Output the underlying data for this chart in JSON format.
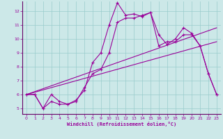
{
  "xlabel": "Windchill (Refroidissement éolien,°C)",
  "background_color": "#cce8e8",
  "grid_color": "#99cccc",
  "line_color": "#990099",
  "spine_color": "#660066",
  "tick_color": "#990099",
  "x_ticks": [
    0,
    1,
    2,
    3,
    4,
    5,
    6,
    7,
    8,
    9,
    10,
    11,
    12,
    13,
    14,
    15,
    16,
    17,
    18,
    19,
    20,
    21,
    22,
    23
  ],
  "y_ticks": [
    5,
    6,
    7,
    8,
    9,
    10,
    11,
    12
  ],
  "ylim": [
    4.6,
    12.7
  ],
  "xlim": [
    -0.5,
    23.5
  ],
  "series1_x": [
    0,
    1,
    2,
    3,
    4,
    5,
    6,
    7,
    8,
    9,
    10,
    11,
    12,
    13,
    14,
    15,
    16,
    17,
    18,
    19,
    20,
    21,
    22,
    23
  ],
  "series1_y": [
    6.0,
    6.0,
    5.0,
    6.0,
    5.5,
    5.3,
    5.6,
    6.3,
    8.3,
    9.0,
    11.0,
    12.6,
    11.7,
    11.8,
    11.6,
    11.9,
    9.5,
    9.8,
    9.8,
    10.3,
    10.3,
    9.5,
    7.5,
    6.0
  ],
  "series2_x": [
    0,
    1,
    2,
    3,
    4,
    5,
    6,
    7,
    8,
    9,
    10,
    11,
    12,
    13,
    14,
    15,
    16,
    17,
    18,
    19,
    20,
    21,
    22,
    23
  ],
  "series2_y": [
    6.0,
    6.0,
    5.0,
    5.5,
    5.3,
    5.3,
    5.5,
    6.5,
    7.5,
    7.8,
    9.0,
    11.2,
    11.5,
    11.5,
    11.7,
    11.9,
    10.3,
    9.6,
    10.0,
    10.8,
    10.4,
    9.5,
    7.5,
    6.0
  ],
  "line1_x": [
    0,
    23
  ],
  "line1_y": [
    6.0,
    10.8
  ],
  "line2_x": [
    0,
    23
  ],
  "line2_y": [
    6.0,
    9.8
  ]
}
